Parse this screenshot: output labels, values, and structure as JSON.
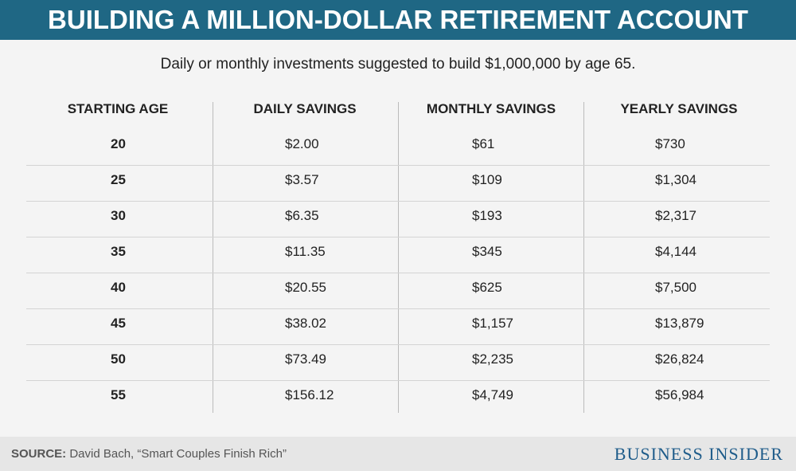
{
  "header": {
    "title": "BUILDING A MILLION-DOLLAR RETIREMENT ACCOUNT",
    "subtitle": "Daily or monthly investments suggested to build $1,000,000 by age 65."
  },
  "table": {
    "headers": [
      "STARTING AGE",
      "DAILY SAVINGS",
      "MONTHLY SAVINGS",
      "YEARLY SAVINGS"
    ],
    "rows": [
      [
        "20",
        "$2.00",
        "$61",
        "$730"
      ],
      [
        "25",
        "$3.57",
        "$109",
        "$1,304"
      ],
      [
        "30",
        "$6.35",
        "$193",
        "$2,317"
      ],
      [
        "35",
        "$11.35",
        "$345",
        "$4,144"
      ],
      [
        "40",
        "$20.55",
        "$625",
        "$7,500"
      ],
      [
        "45",
        "$38.02",
        "$1,157",
        "$13,879"
      ],
      [
        "50",
        "$73.49",
        "$2,235",
        "$26,824"
      ],
      [
        "55",
        "$156.12",
        "$4,749",
        "$56,984"
      ]
    ]
  },
  "footer": {
    "source_label": "SOURCE:",
    "source": "David Bach, “Smart Couples Finish Rich”",
    "brand": "BUSINESS INSIDER"
  }
}
